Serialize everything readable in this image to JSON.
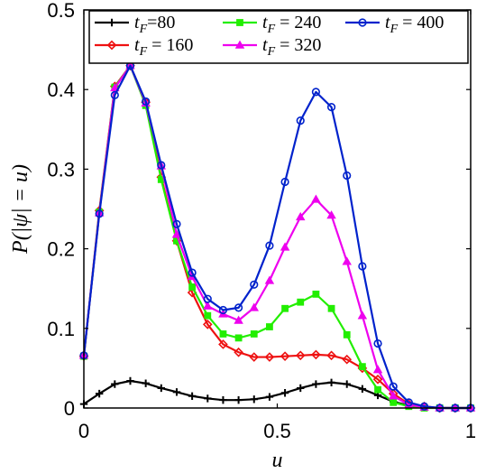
{
  "chart_data": {
    "type": "line",
    "xlabel": "u",
    "ylabel": "P(|ψ| = u)",
    "xlim": [
      0,
      1
    ],
    "ylim": [
      0,
      0.5
    ],
    "xticks": [
      0,
      0.5,
      1
    ],
    "xtick_labels": [
      "0",
      "0.5",
      "1"
    ],
    "yticks": [
      0,
      0.1,
      0.2,
      0.3,
      0.4,
      0.5
    ],
    "ytick_labels": [
      "0",
      "0.1",
      "0.2",
      "0.3",
      "0.4",
      "0.5"
    ],
    "grid": false,
    "legend_position": "top",
    "x": [
      0,
      0.04,
      0.08,
      0.12,
      0.16,
      0.2,
      0.24,
      0.28,
      0.32,
      0.36,
      0.4,
      0.44,
      0.48,
      0.52,
      0.56,
      0.6,
      0.64,
      0.68,
      0.72,
      0.76,
      0.8,
      0.84,
      0.88,
      0.92,
      0.96,
      1.0
    ],
    "series": [
      {
        "name": "t_F=80",
        "color": "#000000",
        "marker": "plus",
        "values": [
          0.005,
          0.018,
          0.03,
          0.034,
          0.031,
          0.025,
          0.02,
          0.015,
          0.012,
          0.01,
          0.01,
          0.011,
          0.014,
          0.019,
          0.025,
          0.03,
          0.032,
          0.03,
          0.024,
          0.016,
          0.008,
          0.003,
          0.001,
          0.0,
          0.0,
          0.0
        ]
      },
      {
        "name": "t_F = 160",
        "color": "#ee1111",
        "marker": "diamond",
        "values": [
          0.065,
          0.248,
          0.404,
          0.43,
          0.384,
          0.29,
          0.21,
          0.145,
          0.105,
          0.08,
          0.07,
          0.064,
          0.064,
          0.065,
          0.066,
          0.067,
          0.066,
          0.061,
          0.05,
          0.036,
          0.018,
          0.005,
          0.002,
          0.0,
          0.0,
          0.0
        ]
      },
      {
        "name": "t_F = 240",
        "color": "#22ee00",
        "marker": "square",
        "values": [
          0.065,
          0.246,
          0.403,
          0.43,
          0.38,
          0.287,
          0.21,
          0.152,
          0.116,
          0.093,
          0.088,
          0.093,
          0.102,
          0.125,
          0.133,
          0.143,
          0.125,
          0.092,
          0.052,
          0.023,
          0.007,
          0.002,
          0.0,
          0.0,
          0.0,
          0.0
        ]
      },
      {
        "name": "t_F = 320",
        "color": "#ee00ee",
        "marker": "triangle",
        "values": [
          0.066,
          0.245,
          0.402,
          0.43,
          0.383,
          0.304,
          0.218,
          0.165,
          0.128,
          0.118,
          0.11,
          0.126,
          0.16,
          0.202,
          0.24,
          0.262,
          0.242,
          0.184,
          0.116,
          0.048,
          0.015,
          0.004,
          0.001,
          0.0,
          0.0,
          0.0
        ]
      },
      {
        "name": "t_F = 400",
        "color": "#0022cc",
        "marker": "circle",
        "values": [
          0.066,
          0.244,
          0.393,
          0.43,
          0.385,
          0.305,
          0.231,
          0.17,
          0.137,
          0.123,
          0.126,
          0.155,
          0.204,
          0.284,
          0.361,
          0.397,
          0.378,
          0.292,
          0.178,
          0.081,
          0.027,
          0.007,
          0.002,
          0.0,
          0.0,
          0.0
        ]
      }
    ],
    "legend": [
      {
        "series_index": 0,
        "label_main": "t",
        "label_sub": "F",
        "label_rest": "=80"
      },
      {
        "series_index": 2,
        "label_main": "t",
        "label_sub": "F",
        "label_rest": " = 240"
      },
      {
        "series_index": 4,
        "label_main": "t",
        "label_sub": "F",
        "label_rest": " = 400"
      },
      {
        "series_index": 1,
        "label_main": "t",
        "label_sub": "F",
        "label_rest": " = 160"
      },
      {
        "series_index": 3,
        "label_main": "t",
        "label_sub": "F",
        "label_rest": " = 320"
      }
    ]
  }
}
